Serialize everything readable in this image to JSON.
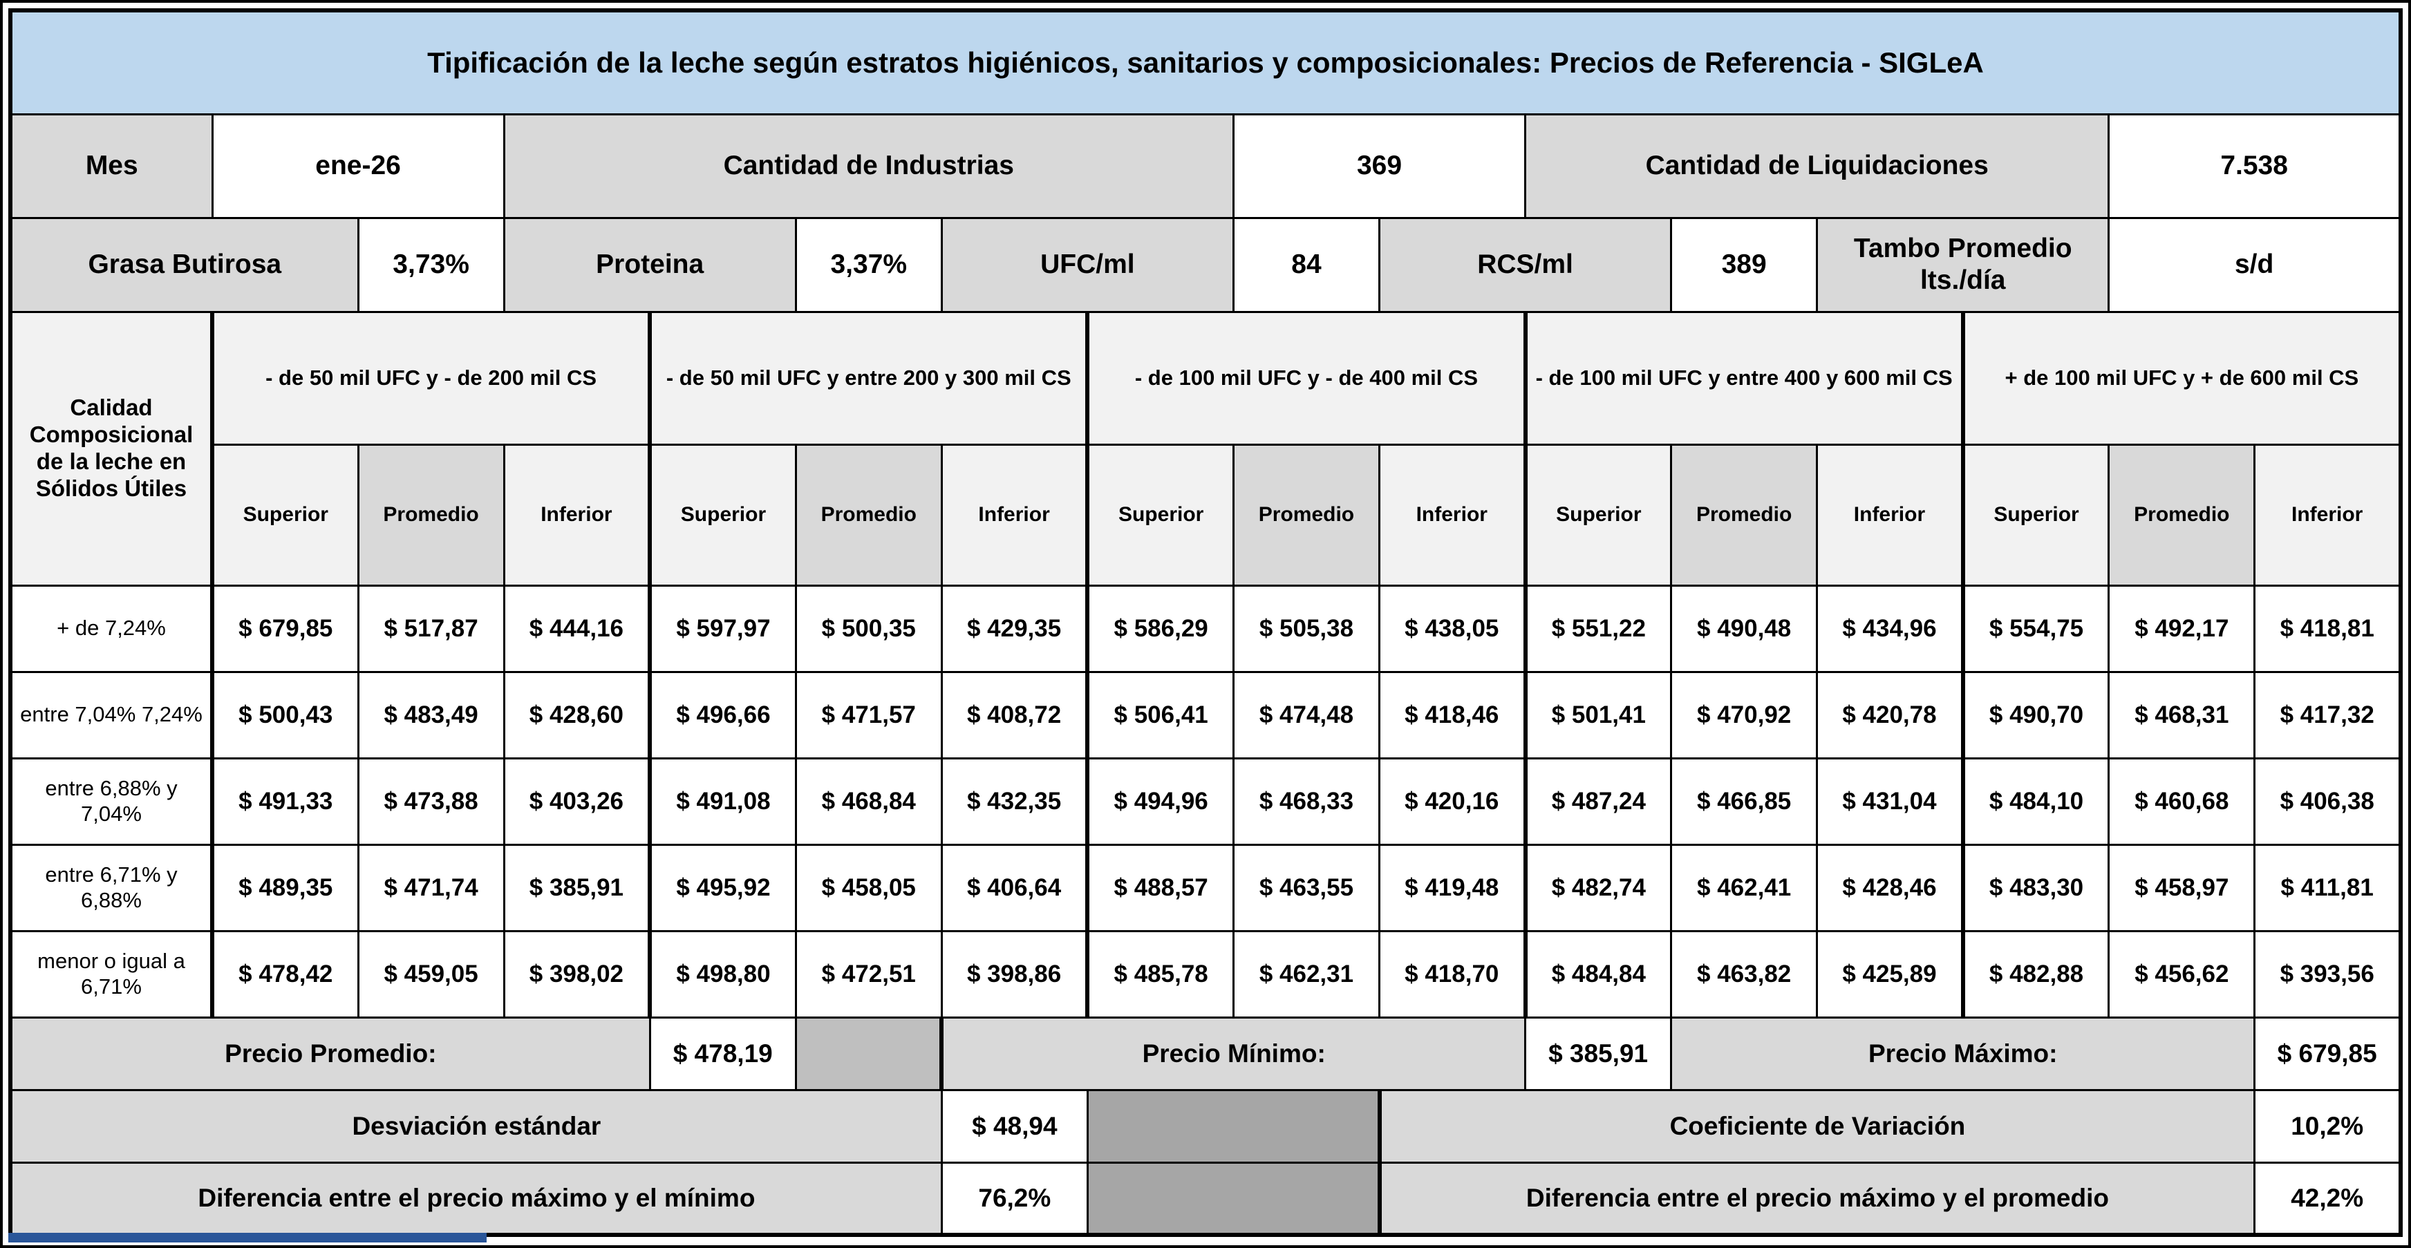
{
  "title": "Tipificación de la leche según estratos higiénicos, sanitarios y composicionales: Precios de Referencia - SIGLeA",
  "info_row1": [
    {
      "label": "Mes",
      "value": "ene-26"
    },
    {
      "label": "Cantidad de Industrias",
      "value": "369"
    },
    {
      "label": "Cantidad de Liquidaciones",
      "value": "7.538"
    }
  ],
  "info_row2": [
    {
      "label": "Grasa Butirosa",
      "value": "3,73%"
    },
    {
      "label": "Proteina",
      "value": "3,37%"
    },
    {
      "label": "UFC/ml",
      "value": "84"
    },
    {
      "label": "RCS/ml",
      "value": "389"
    },
    {
      "label": "Tambo Promedio lts./día",
      "value": "s/d"
    }
  ],
  "matrix": {
    "corner_label": "Calidad Composicional de la leche en Sólidos Útiles",
    "groups": [
      "- de 50 mil UFC y - de 200 mil CS",
      "- de 50 mil UFC y entre 200 y 300 mil CS",
      "- de 100 mil UFC y - de 400 mil CS",
      "- de 100 mil UFC y entre 400 y 600 mil CS",
      "+ de 100 mil UFC y + de 600 mil CS"
    ],
    "subheaders": [
      "Superior",
      "Promedio",
      "Inferior"
    ],
    "rows": [
      {
        "label": "+ de 7,24%",
        "values": [
          "$ 679,85",
          "$ 517,87",
          "$ 444,16",
          "$ 597,97",
          "$ 500,35",
          "$ 429,35",
          "$ 586,29",
          "$ 505,38",
          "$ 438,05",
          "$ 551,22",
          "$ 490,48",
          "$ 434,96",
          "$ 554,75",
          "$ 492,17",
          "$ 418,81"
        ]
      },
      {
        "label": "entre 7,04% 7,24%",
        "values": [
          "$ 500,43",
          "$ 483,49",
          "$ 428,60",
          "$ 496,66",
          "$ 471,57",
          "$ 408,72",
          "$ 506,41",
          "$ 474,48",
          "$ 418,46",
          "$ 501,41",
          "$ 470,92",
          "$ 420,78",
          "$ 490,70",
          "$ 468,31",
          "$ 417,32"
        ]
      },
      {
        "label": "entre 6,88% y 7,04%",
        "values": [
          "$ 491,33",
          "$ 473,88",
          "$ 403,26",
          "$ 491,08",
          "$ 468,84",
          "$ 432,35",
          "$ 494,96",
          "$ 468,33",
          "$ 420,16",
          "$ 487,24",
          "$ 466,85",
          "$ 431,04",
          "$ 484,10",
          "$ 460,68",
          "$ 406,38"
        ]
      },
      {
        "label": "entre 6,71% y 6,88%",
        "values": [
          "$ 489,35",
          "$ 471,74",
          "$ 385,91",
          "$ 495,92",
          "$ 458,05",
          "$ 406,64",
          "$ 488,57",
          "$ 463,55",
          "$ 419,48",
          "$ 482,74",
          "$ 462,41",
          "$ 428,46",
          "$ 483,30",
          "$ 458,97",
          "$ 411,81"
        ]
      },
      {
        "label": "menor o igual a 6,71%",
        "values": [
          "$ 478,42",
          "$ 459,05",
          "$ 398,02",
          "$ 498,80",
          "$ 472,51",
          "$ 398,86",
          "$ 485,78",
          "$ 462,31",
          "$ 418,70",
          "$ 484,84",
          "$ 463,82",
          "$ 425,89",
          "$ 482,88",
          "$ 456,62",
          "$ 393,56"
        ]
      }
    ]
  },
  "summary": {
    "precio_promedio": {
      "label": "Precio Promedio:",
      "value": "$ 478,19"
    },
    "precio_minimo": {
      "label": "Precio Mínimo:",
      "value": "$ 385,91"
    },
    "precio_maximo": {
      "label": "Precio Máximo:",
      "value": "$ 679,85"
    },
    "desviacion": {
      "label": "Desviación estándar",
      "value": "$ 48,94"
    },
    "coeficiente": {
      "label": "Coeficiente de Variación",
      "value": "10,2%"
    },
    "dif_max_min": {
      "label": "Diferencia entre el precio máximo y el mínimo",
      "value": "76,2%"
    },
    "dif_max_prom": {
      "label": "Diferencia entre el precio máximo y el promedio",
      "value": "42,2%"
    }
  },
  "colors": {
    "title_bg": "#BDD7EE",
    "label_bg": "#D9D9D9",
    "header_bg": "#F2F2F2",
    "promedio_header_bg": "#D9D9D9",
    "filler_medium": "#BFBFBF",
    "filler_dark": "#A6A6A6",
    "border": "#000000",
    "bottom_bar": "#2A5699"
  }
}
